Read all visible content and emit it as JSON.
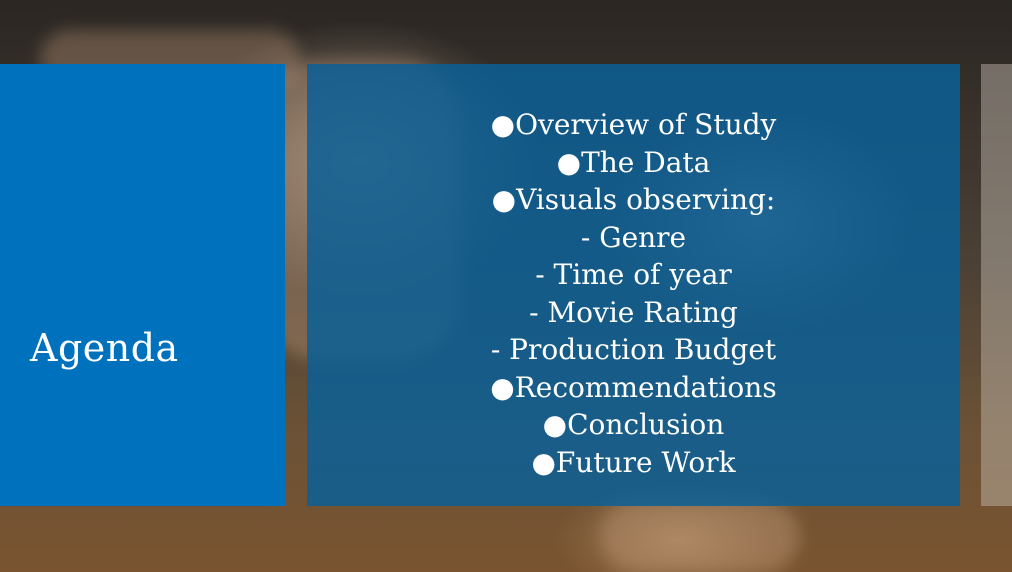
{
  "slide": {
    "title": "Agenda",
    "items": [
      "●Overview of Study",
      "●The Data",
      "●Visuals observing:",
      "- Genre",
      "- Time of year",
      "- Movie Rating",
      "- Production Budget",
      "●Recommendations",
      "●Conclusion",
      "●Future Work"
    ]
  },
  "colors": {
    "title_panel": "#0071bc",
    "content_panel": "#0a5f96",
    "text": "#ffffff"
  }
}
